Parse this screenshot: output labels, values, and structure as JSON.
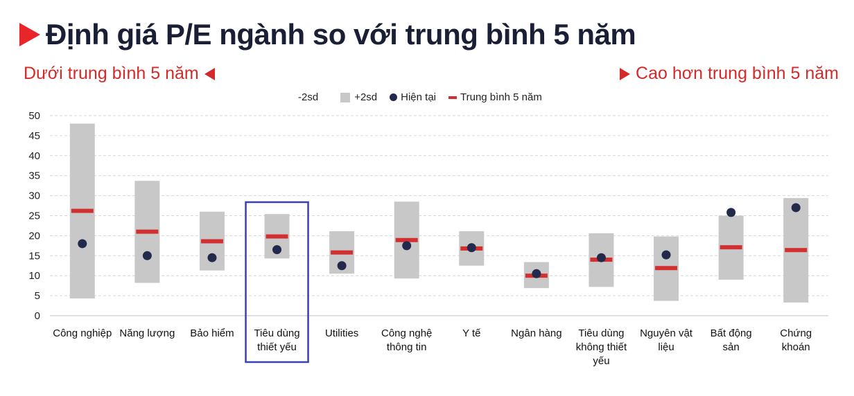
{
  "header": {
    "title": "Định giá P/E ngành so với trung bình 5 năm",
    "sub_left": "Dưới trung bình 5 năm",
    "sub_right": "Cao hơn trung bình 5 năm"
  },
  "legend": {
    "minus2sd": "-2sd",
    "plus2sd": "+2sd",
    "current": "Hiện tại",
    "avg5y": "Trung bình 5 năm"
  },
  "colors": {
    "accent_red": "#d23030",
    "range_grey": "#c8c8c8",
    "current_dot": "#23294a",
    "highlight_box": "#3a3fb8",
    "title": "#1a1f36"
  },
  "chart_data": {
    "type": "range-bar",
    "ylim": [
      0,
      50
    ],
    "yticks": [
      0,
      5,
      10,
      15,
      20,
      25,
      30,
      35,
      40,
      45,
      50
    ],
    "grid": true,
    "legend_position": "top",
    "highlighted_category_index": 3,
    "categories": [
      {
        "label": [
          "Công nghiệp"
        ],
        "low": 4.3,
        "high": 48,
        "current": 18,
        "avg5y": 26.2
      },
      {
        "label": [
          "Năng lượng"
        ],
        "low": 8.2,
        "high": 33.7,
        "current": 15,
        "avg5y": 21
      },
      {
        "label": [
          "Bảo hiểm"
        ],
        "low": 11.3,
        "high": 26,
        "current": 14.5,
        "avg5y": 18.6
      },
      {
        "label": [
          "Tiêu dùng",
          "thiết yếu"
        ],
        "low": 14.3,
        "high": 25.4,
        "current": 16.5,
        "avg5y": 19.8
      },
      {
        "label": [
          "Utilities"
        ],
        "low": 10.5,
        "high": 21.1,
        "current": 12.5,
        "avg5y": 15.8
      },
      {
        "label": [
          "Công nghệ",
          "thông tin"
        ],
        "low": 9.3,
        "high": 28.5,
        "current": 17.5,
        "avg5y": 18.9
      },
      {
        "label": [
          "Y tế"
        ],
        "low": 12.5,
        "high": 21.1,
        "current": 17,
        "avg5y": 16.8
      },
      {
        "label": [
          "Ngân hàng"
        ],
        "low": 6.9,
        "high": 13.4,
        "current": 10.5,
        "avg5y": 10
      },
      {
        "label": [
          "Tiêu dùng",
          "không thiết",
          "yếu"
        ],
        "low": 7.2,
        "high": 20.6,
        "current": 14.5,
        "avg5y": 14
      },
      {
        "label": [
          "Nguyên vật",
          "liệu"
        ],
        "low": 3.7,
        "high": 19.8,
        "current": 15.2,
        "avg5y": 11.9
      },
      {
        "label": [
          "Bất động",
          "sản"
        ],
        "low": 9,
        "high": 25,
        "current": 25.8,
        "avg5y": 17.1
      },
      {
        "label": [
          "Chứng",
          "khoán"
        ],
        "low": 3.3,
        "high": 29.4,
        "current": 27,
        "avg5y": 16.4
      }
    ]
  }
}
